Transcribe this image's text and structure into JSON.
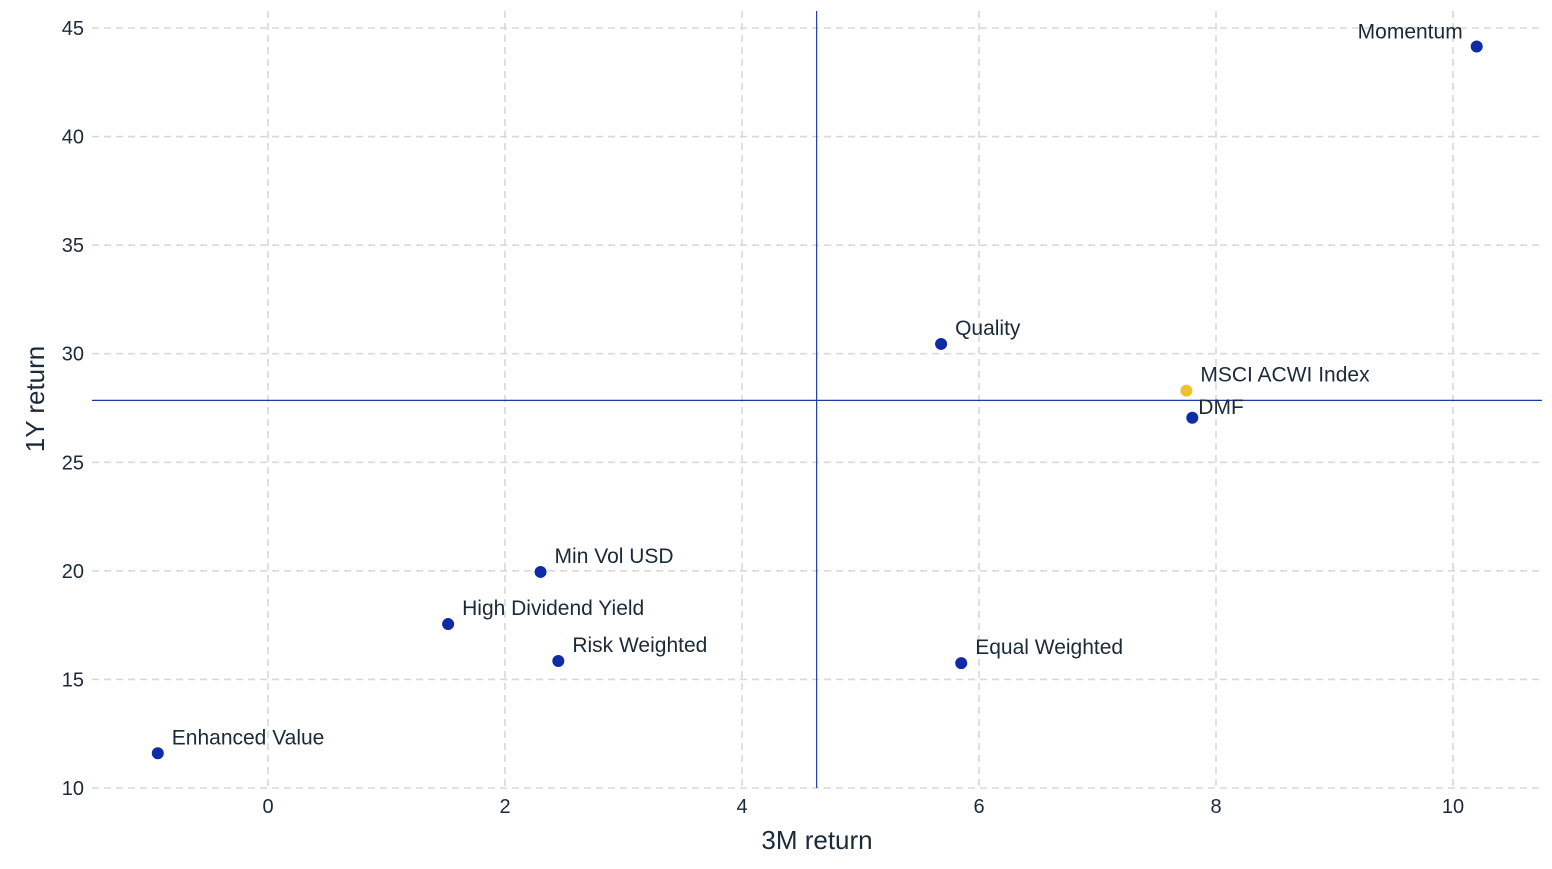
{
  "chart_data": {
    "type": "scatter",
    "xlabel": "3M return",
    "ylabel": "1Y return",
    "xlim": [
      -1.5,
      10.75
    ],
    "ylim": [
      9.6,
      45.8
    ],
    "x_ticks": [
      0,
      2,
      4,
      6,
      8,
      10
    ],
    "y_ticks": [
      10,
      15,
      20,
      25,
      30,
      35,
      40,
      45
    ],
    "grid": true,
    "reference_lines": {
      "x": 4.63,
      "y": 27.85
    },
    "colors": {
      "series": "#0f2ba6",
      "highlight": "#f2be32",
      "reference": "#1f3a9e",
      "grid": "#d9d9d9",
      "text": "#1b2a38"
    },
    "points": [
      {
        "label": "Momentum",
        "x": 10.2,
        "y": 44.15,
        "highlight": false,
        "label_pos": "left"
      },
      {
        "label": "Quality",
        "x": 5.68,
        "y": 30.45,
        "highlight": false,
        "label_pos": "right"
      },
      {
        "label": "MSCI ACWI Index",
        "x": 7.75,
        "y": 28.3,
        "highlight": true,
        "label_pos": "right"
      },
      {
        "label": "DMF",
        "x": 7.8,
        "y": 27.05,
        "highlight": false,
        "label_pos": "right-tight"
      },
      {
        "label": "Min Vol USD",
        "x": 2.3,
        "y": 19.95,
        "highlight": false,
        "label_pos": "right"
      },
      {
        "label": "High Dividend Yield",
        "x": 1.52,
        "y": 17.55,
        "highlight": false,
        "label_pos": "right"
      },
      {
        "label": "Risk Weighted",
        "x": 2.45,
        "y": 15.85,
        "highlight": false,
        "label_pos": "right"
      },
      {
        "label": "Equal Weighted",
        "x": 5.85,
        "y": 15.75,
        "highlight": false,
        "label_pos": "right"
      },
      {
        "label": "Enhanced Value",
        "x": -0.93,
        "y": 11.6,
        "highlight": false,
        "label_pos": "right"
      }
    ]
  }
}
